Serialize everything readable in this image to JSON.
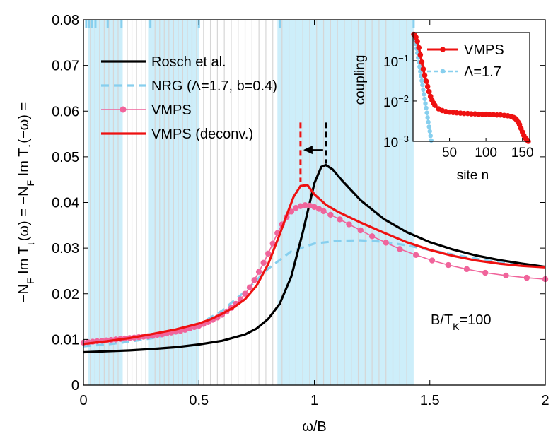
{
  "chart_data": [
    {
      "type": "line",
      "title": "",
      "xlabel": "ω/B",
      "ylabel_parts": [
        "−N",
        "F",
        " Im T",
        "↓",
        "(ω) = −N",
        "F",
        " Im T",
        "↑",
        "(−ω) ="
      ],
      "xlim": [
        0,
        2
      ],
      "ylim": [
        0,
        0.08
      ],
      "xticks": [
        0,
        0.5,
        1,
        1.5,
        2
      ],
      "xtick_labels": [
        "0",
        "0.5",
        "1",
        "1.5",
        "2"
      ],
      "yticks": [
        0,
        0.01,
        0.02,
        0.03,
        0.04,
        0.05,
        0.06,
        0.07,
        0.08
      ],
      "ytick_labels": [
        "0",
        "0.01",
        "0.02",
        "0.03",
        "0.04",
        "0.05",
        "0.06",
        "0.07",
        "0.08"
      ],
      "annotation_parts": [
        "B/T",
        "K",
        "=100"
      ],
      "colors": {
        "rosch": "#000000",
        "nrg": "#87cfee",
        "vmps": "#f0649b",
        "vmps_deconv": "#ee1111",
        "bands": "#cdeefa",
        "grid_lines": "#d6d6d6"
      },
      "legend": [
        "Rosch et al.",
        "NRG (Λ=1.7, b=0.4)",
        "VMPS",
        "VMPS (deconv.)"
      ],
      "band_regions": [
        [
          0.02,
          0.17
        ],
        [
          0.28,
          0.5
        ],
        [
          0.84,
          1.43
        ]
      ],
      "nrg_ticks_x": [
        0.012,
        0.024,
        0.036,
        0.052,
        0.105,
        0.165,
        0.29,
        0.5,
        0.85,
        1.43
      ],
      "vertical_grid_x": [
        0.03,
        0.05,
        0.07,
        0.09,
        0.11,
        0.13,
        0.15,
        0.19,
        0.21,
        0.23,
        0.25,
        0.27,
        0.31,
        0.33,
        0.35,
        0.37,
        0.39,
        0.41,
        0.43,
        0.45,
        0.47,
        0.49,
        0.52,
        0.55,
        0.58,
        0.61,
        0.64,
        0.67,
        0.7,
        0.73,
        0.76,
        0.79,
        0.82,
        0.86,
        0.89,
        0.92,
        0.95,
        0.98,
        1.01,
        1.04,
        1.07,
        1.1,
        1.13,
        1.16,
        1.19,
        1.22,
        1.25,
        1.28,
        1.31,
        1.34,
        1.37,
        1.4
      ],
      "markers": {
        "dashed_red_x": 0.94,
        "dashed_black_x": 1.05,
        "arrow_y": 0.0515
      },
      "series": [
        {
          "name": "Rosch et al.",
          "style": "solid",
          "x": [
            0,
            0.1,
            0.2,
            0.3,
            0.4,
            0.5,
            0.6,
            0.7,
            0.75,
            0.8,
            0.85,
            0.9,
            0.95,
            1.0,
            1.03,
            1.05,
            1.08,
            1.12,
            1.2,
            1.3,
            1.4,
            1.5,
            1.6,
            1.7,
            1.8,
            1.9,
            2.0
          ],
          "y": [
            0.0072,
            0.0074,
            0.0076,
            0.0079,
            0.0083,
            0.0089,
            0.0097,
            0.0111,
            0.0124,
            0.0145,
            0.0178,
            0.0238,
            0.0335,
            0.0442,
            0.0478,
            0.0482,
            0.0472,
            0.0448,
            0.0405,
            0.0364,
            0.0335,
            0.0313,
            0.0297,
            0.0284,
            0.0274,
            0.0266,
            0.0259
          ]
        },
        {
          "name": "NRG (Λ=1.7, b=0.4)",
          "style": "dashed",
          "x": [
            0,
            0.1,
            0.2,
            0.3,
            0.4,
            0.5,
            0.6,
            0.7,
            0.8,
            0.9,
            1.0,
            1.1,
            1.2,
            1.3,
            1.4,
            1.5,
            1.6,
            1.7,
            1.8,
            1.9,
            2.0
          ],
          "y": [
            0.0085,
            0.0089,
            0.0095,
            0.0103,
            0.0114,
            0.0133,
            0.0163,
            0.0205,
            0.0255,
            0.0293,
            0.031,
            0.0316,
            0.0317,
            0.0314,
            0.0306,
            0.0296,
            0.0286,
            0.0277,
            0.0269,
            0.0263,
            0.0258
          ]
        },
        {
          "name": "VMPS",
          "style": "solid-markers",
          "x": [
            0,
            0.02,
            0.04,
            0.06,
            0.08,
            0.1,
            0.12,
            0.14,
            0.16,
            0.18,
            0.2,
            0.22,
            0.24,
            0.26,
            0.28,
            0.3,
            0.32,
            0.34,
            0.36,
            0.38,
            0.4,
            0.42,
            0.44,
            0.46,
            0.48,
            0.5,
            0.52,
            0.54,
            0.56,
            0.58,
            0.6,
            0.62,
            0.64,
            0.66,
            0.68,
            0.7,
            0.72,
            0.74,
            0.76,
            0.78,
            0.8,
            0.82,
            0.84,
            0.86,
            0.88,
            0.9,
            0.92,
            0.94,
            0.96,
            0.98,
            1.0,
            1.02,
            1.04,
            1.07,
            1.11,
            1.15,
            1.2,
            1.25,
            1.31,
            1.37,
            1.44,
            1.51,
            1.58,
            1.66,
            1.74,
            1.83,
            1.92,
            2.0
          ],
          "y": [
            0.0093,
            0.0094,
            0.0095,
            0.0096,
            0.0097,
            0.0098,
            0.0099,
            0.01,
            0.0101,
            0.0102,
            0.0103,
            0.0104,
            0.0105,
            0.0106,
            0.0107,
            0.0108,
            0.011,
            0.0111,
            0.0113,
            0.0115,
            0.0117,
            0.0119,
            0.0121,
            0.0124,
            0.0127,
            0.013,
            0.0134,
            0.0138,
            0.0143,
            0.0148,
            0.0154,
            0.0161,
            0.0169,
            0.0178,
            0.0188,
            0.02,
            0.0214,
            0.023,
            0.0248,
            0.0268,
            0.0288,
            0.031,
            0.0333,
            0.0352,
            0.0368,
            0.038,
            0.0388,
            0.0392,
            0.0394,
            0.0393,
            0.039,
            0.0386,
            0.0381,
            0.0373,
            0.0363,
            0.0352,
            0.0339,
            0.0326,
            0.0312,
            0.0298,
            0.0285,
            0.0273,
            0.0263,
            0.0254,
            0.0246,
            0.024,
            0.0235,
            0.0232
          ]
        },
        {
          "name": "VMPS (deconv.)",
          "style": "solid",
          "x": [
            0,
            0.1,
            0.2,
            0.3,
            0.4,
            0.5,
            0.55,
            0.6,
            0.65,
            0.7,
            0.75,
            0.8,
            0.85,
            0.88,
            0.91,
            0.94,
            0.97,
            1.0,
            1.05,
            1.1,
            1.2,
            1.3,
            1.4,
            1.5,
            1.6,
            1.7,
            1.8,
            1.9,
            2.0
          ],
          "y": [
            0.009,
            0.0096,
            0.0103,
            0.0112,
            0.0122,
            0.0135,
            0.0144,
            0.0156,
            0.017,
            0.0188,
            0.0218,
            0.0265,
            0.033,
            0.0372,
            0.0412,
            0.0436,
            0.0438,
            0.0418,
            0.0395,
            0.038,
            0.0356,
            0.0334,
            0.0313,
            0.0296,
            0.0283,
            0.0273,
            0.0266,
            0.0261,
            0.0258
          ]
        }
      ]
    },
    {
      "type": "line",
      "title": "",
      "xlabel": "site n",
      "ylabel": "coupling",
      "yscale": "log",
      "xlim": [
        0,
        160
      ],
      "ylim": [
        0.001,
        0.5
      ],
      "xticks": [
        50,
        100,
        150
      ],
      "xtick_labels": [
        "50",
        "100",
        "150"
      ],
      "ytick_labels": [
        {
          "base": "10",
          "exp": "−1",
          "value": 0.1
        },
        {
          "base": "10",
          "exp": "−2",
          "value": 0.01
        },
        {
          "base": "10",
          "exp": "−3",
          "value": 0.001
        }
      ],
      "legend": [
        "VMPS",
        "Λ=1.7"
      ],
      "series": [
        {
          "name": "VMPS",
          "style": "solid-markers",
          "x": [
            1,
            2,
            4,
            6,
            8,
            10,
            12,
            14,
            16,
            18,
            20,
            22,
            24,
            26,
            28,
            30,
            35,
            40,
            45,
            50,
            55,
            60,
            65,
            70,
            75,
            80,
            85,
            90,
            95,
            100,
            105,
            110,
            115,
            120,
            125,
            130,
            135,
            138,
            140,
            142,
            144,
            146,
            148,
            150,
            152,
            154,
            156,
            158
          ],
          "y": [
            0.45,
            0.44,
            0.38,
            0.3,
            0.21,
            0.14,
            0.092,
            0.062,
            0.043,
            0.031,
            0.023,
            0.017,
            0.013,
            0.0105,
            0.0089,
            0.0078,
            0.0064,
            0.0058,
            0.0055,
            0.0053,
            0.0052,
            0.0051,
            0.005,
            0.0049,
            0.0049,
            0.0048,
            0.0048,
            0.0047,
            0.0047,
            0.0047,
            0.0046,
            0.0046,
            0.0045,
            0.0045,
            0.0044,
            0.0043,
            0.0041,
            0.0039,
            0.0037,
            0.0034,
            0.003,
            0.0026,
            0.0021,
            0.0017,
            0.0014,
            0.0012,
            0.0011,
            0.001
          ]
        },
        {
          "name": "Λ=1.7",
          "style": "dashed-markers",
          "x": [
            1,
            2,
            3,
            4,
            5,
            6,
            7,
            8,
            9,
            10,
            11,
            12,
            13,
            14,
            15,
            16,
            17,
            18,
            19,
            20,
            21,
            22,
            23,
            24,
            25
          ],
          "y": [
            0.45,
            0.4,
            0.33,
            0.26,
            0.2,
            0.155,
            0.12,
            0.092,
            0.071,
            0.054,
            0.042,
            0.032,
            0.025,
            0.019,
            0.0147,
            0.0113,
            0.0087,
            0.0067,
            0.0051,
            0.0039,
            0.003,
            0.0023,
            0.00178,
            0.00137,
            0.00105
          ]
        }
      ]
    }
  ]
}
